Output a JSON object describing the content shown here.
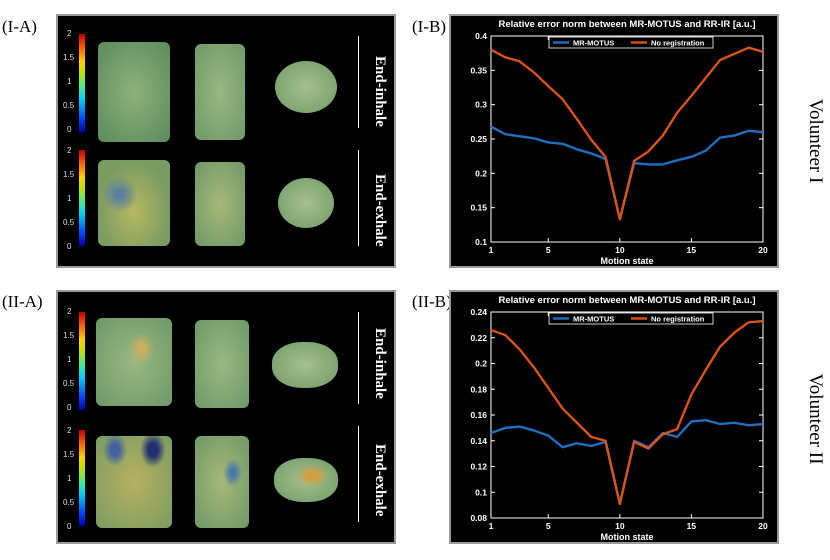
{
  "labels": {
    "ia": "(I-A)",
    "ib": "(I-B)",
    "iia": "(II-A)",
    "iib": "(II-B)",
    "volunteer1": "Volunteer I",
    "volunteer2": "Volunteer II"
  },
  "image_panels": {
    "top": {
      "inhale": "End-inhale",
      "exhale": "End-exhale",
      "colorbar_ticks": [
        "2",
        "1.5",
        "1",
        "0.5",
        "0"
      ]
    },
    "bottom": {
      "inhale": "End-inhale",
      "exhale": "End-exhale",
      "colorbar_ticks": [
        "2",
        "1.5",
        "1",
        "0.5",
        "0"
      ]
    }
  },
  "colors": {
    "mr_motus": "#1f6fbf",
    "no_registration": "#d95319",
    "panel_bg": "#000000",
    "axis": "#ffffff"
  },
  "chart_data": [
    {
      "type": "line",
      "title": "Relative error norm between MR-MOTUS and RR-IR [a.u.]",
      "xlabel": "Motion state",
      "ylabel": "",
      "xlim": [
        1,
        20
      ],
      "ylim": [
        0.1,
        0.4
      ],
      "xticks": [
        1,
        5,
        10,
        15,
        20
      ],
      "yticks": [
        0.1,
        0.15,
        0.2,
        0.25,
        0.3,
        0.35,
        0.4
      ],
      "ytick_labels": [
        "0.1",
        "0.15",
        "0.2",
        "0.25",
        "0.3",
        "0.35",
        "0.4"
      ],
      "legend_position": "top",
      "x": [
        1,
        2,
        3,
        4,
        5,
        6,
        7,
        8,
        9,
        10,
        11,
        12,
        13,
        14,
        15,
        16,
        17,
        18,
        19,
        20
      ],
      "series": [
        {
          "name": "MR-MOTUS",
          "color": "#1f6fbf",
          "values": [
            0.268,
            0.257,
            0.254,
            0.251,
            0.245,
            0.243,
            0.235,
            0.229,
            0.221,
            0.133,
            0.215,
            0.213,
            0.213,
            0.219,
            0.224,
            0.233,
            0.252,
            0.255,
            0.262,
            0.26
          ]
        },
        {
          "name": "No registration",
          "color": "#d95319",
          "values": [
            0.38,
            0.369,
            0.363,
            0.347,
            0.327,
            0.308,
            0.279,
            0.249,
            0.224,
            0.133,
            0.218,
            0.232,
            0.255,
            0.288,
            0.313,
            0.339,
            0.365,
            0.374,
            0.383,
            0.377
          ]
        }
      ]
    },
    {
      "type": "line",
      "title": "Relative error norm between MR-MOTUS and RR-IR [a.u.]",
      "xlabel": "Motion state",
      "ylabel": "",
      "xlim": [
        1,
        20
      ],
      "ylim": [
        0.08,
        0.24
      ],
      "xticks": [
        1,
        5,
        10,
        15,
        20
      ],
      "yticks": [
        0.08,
        0.1,
        0.12,
        0.14,
        0.16,
        0.18,
        0.2,
        0.22,
        0.24
      ],
      "ytick_labels": [
        "0.08",
        "0.1",
        "0.12",
        "0.14",
        "0.16",
        "0.18",
        "0.2",
        "0.22",
        "0.24"
      ],
      "legend_position": "top",
      "x": [
        1,
        2,
        3,
        4,
        5,
        6,
        7,
        8,
        9,
        10,
        11,
        12,
        13,
        14,
        15,
        16,
        17,
        18,
        19,
        20
      ],
      "series": [
        {
          "name": "MR-MOTUS",
          "color": "#1f6fbf",
          "values": [
            0.146,
            0.15,
            0.151,
            0.148,
            0.144,
            0.135,
            0.138,
            0.136,
            0.139,
            0.091,
            0.14,
            0.135,
            0.146,
            0.143,
            0.155,
            0.156,
            0.153,
            0.154,
            0.152,
            0.153
          ]
        },
        {
          "name": "No registration",
          "color": "#d95319",
          "values": [
            0.226,
            0.222,
            0.211,
            0.197,
            0.181,
            0.165,
            0.154,
            0.143,
            0.14,
            0.091,
            0.139,
            0.134,
            0.145,
            0.149,
            0.176,
            0.195,
            0.213,
            0.224,
            0.232,
            0.233
          ]
        }
      ]
    }
  ]
}
